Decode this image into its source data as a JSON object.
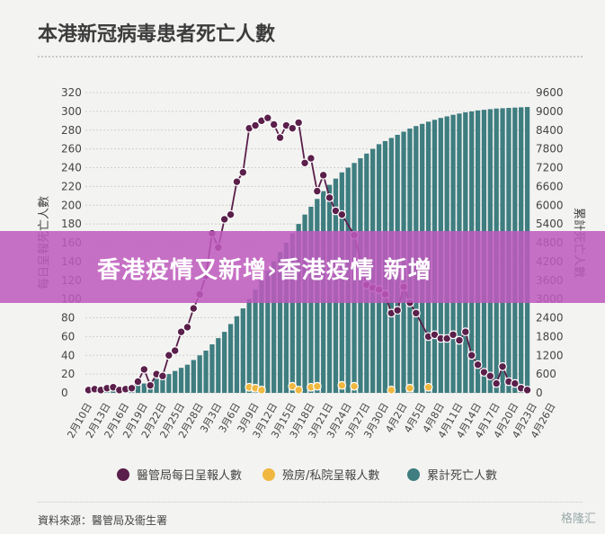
{
  "title": "本港新冠病毒患者死亡人數",
  "banner": "香港疫情又新增›香港疫情 新增",
  "legend": {
    "series1": "醫管局每日呈報人數",
    "series2": "殮房/私院呈報人數",
    "series3": "累計死亡人數"
  },
  "source": "資料來源：醫管局及衞生署",
  "watermark": "格隆汇",
  "colors": {
    "series1": "#5a1f4a",
    "series2": "#f0b840",
    "series3": "#3e7d80",
    "grid": "#d0d0d0"
  },
  "chart_data": {
    "type": "bar",
    "xlabel": "",
    "ylabel_left": "每日呈報死亡人數",
    "ylabel_right": "累計死亡人數",
    "ylim_left": [
      0,
      320
    ],
    "ylim_right": [
      0,
      9600
    ],
    "left_ticks": [
      0,
      20,
      40,
      60,
      80,
      100,
      120,
      140,
      160,
      180,
      200,
      220,
      240,
      260,
      280,
      300,
      320
    ],
    "right_ticks": [
      0,
      600,
      1200,
      1800,
      2400,
      3000,
      3600,
      4200,
      4800,
      5400,
      6000,
      6600,
      7200,
      7800,
      8400,
      9000,
      9600
    ],
    "x_tick_labels": [
      "2月10日",
      "2月13日",
      "2月16日",
      "2月19日",
      "2月22日",
      "2月25日",
      "2月28日",
      "3月3日",
      "3月6日",
      "3月9日",
      "3月12日",
      "3月15日",
      "3月18日",
      "3月21日",
      "3月24日",
      "3月27日",
      "3月30日",
      "4月2日",
      "4月5日",
      "4月8日",
      "4月11日",
      "4月14日",
      "4月17日",
      "4月20日",
      "4月23日",
      "4月26日"
    ],
    "series": [
      {
        "name": "醫管局每日呈報人數",
        "kind": "line",
        "values": [
          3,
          4,
          3,
          5,
          6,
          3,
          4,
          5,
          12,
          25,
          8,
          20,
          18,
          40,
          45,
          65,
          70,
          90,
          105,
          125,
          170,
          155,
          185,
          190,
          225,
          235,
          282,
          285,
          290,
          293,
          286,
          272,
          285,
          282,
          288,
          245,
          250,
          215,
          232,
          208,
          194,
          190,
          0,
          168,
          0,
          115,
          112,
          110,
          105,
          85,
          88,
          113,
          96,
          85,
          0,
          60,
          62,
          58,
          58,
          62,
          56,
          65,
          40,
          30,
          22,
          18,
          10,
          28,
          12,
          10,
          5,
          3
        ]
      },
      {
        "name": "殮房/私院呈報人數",
        "kind": "dots",
        "points": [
          [
            "3月8日",
            6
          ],
          [
            "3月9日",
            5
          ],
          [
            "3月10日",
            3
          ],
          [
            "3月15日",
            7
          ],
          [
            "3月16日",
            3
          ],
          [
            "3月18日",
            6
          ],
          [
            "3月19日",
            7
          ],
          [
            "3月23日",
            8
          ],
          [
            "3月25日",
            7
          ],
          [
            "3月31日",
            3
          ],
          [
            "4月3日",
            5
          ],
          [
            "4月6日",
            6
          ],
          [
            "4月25日",
            6
          ]
        ]
      },
      {
        "name": "累計死亡人數",
        "kind": "bar",
        "values": [
          30,
          45,
          60,
          80,
          100,
          130,
          160,
          200,
          250,
          300,
          380,
          450,
          520,
          600,
          700,
          800,
          900,
          1050,
          1200,
          1350,
          1550,
          1750,
          1950,
          2200,
          2450,
          2700,
          3000,
          3300,
          3600,
          3900,
          4200,
          4500,
          4800,
          5100,
          5400,
          5700,
          5950,
          6200,
          6450,
          6650,
          6850,
          7050,
          7200,
          7350,
          7500,
          7650,
          7800,
          7950,
          8050,
          8150,
          8250,
          8350,
          8450,
          8530,
          8600,
          8670,
          8730,
          8790,
          8840,
          8890,
          8930,
          8970,
          9000,
          9030,
          9050,
          9070,
          9090,
          9100,
          9110,
          9120,
          9130,
          9140
        ]
      }
    ],
    "grid": true,
    "legend_position": "bottom"
  }
}
